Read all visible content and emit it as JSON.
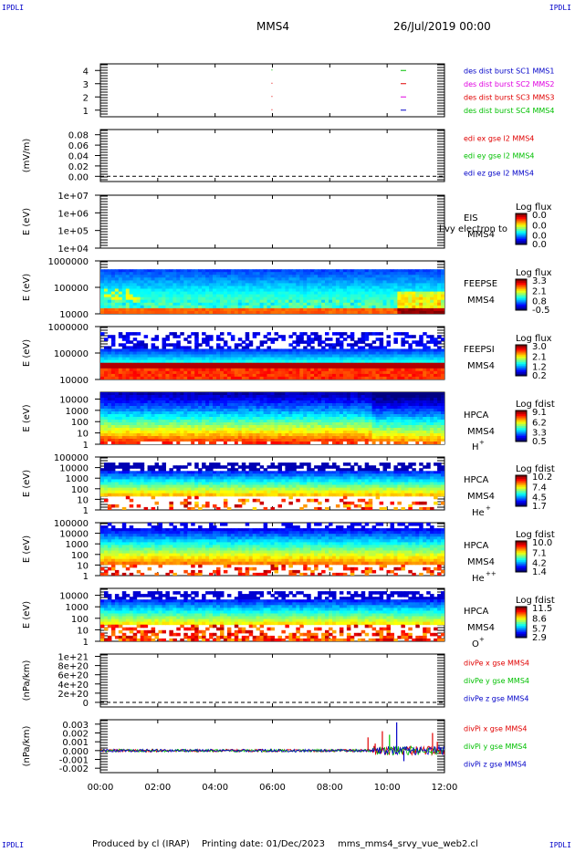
{
  "header": {
    "corner_label": "IPDLI",
    "spacecraft": "MMS4",
    "datetime": "26/Jul/2019 00:00"
  },
  "footer": {
    "produced_by": "Produced by cl (IRAP)",
    "printing_date": "Printing date: 01/Dec/2023",
    "script_name": "mms_mms4_srvy_vue_web2.cl"
  },
  "colors": {
    "red": "#e00000",
    "green": "#00c000",
    "blue": "#0000c8",
    "magenta": "#e000e0"
  },
  "chart_data": {
    "type": "heatmap",
    "x_ticks": [
      "00:00",
      "02:00",
      "04:00",
      "06:00",
      "08:00",
      "10:00",
      "12:00"
    ],
    "xlim": [
      "00:00",
      "12:00"
    ],
    "panels": [
      {
        "id": "burst",
        "type": "scatter",
        "yticks": [
          "1",
          "2",
          "3",
          "4"
        ],
        "ylim": [
          0.5,
          4.5
        ],
        "legend": [
          {
            "text": "des dist burst SC1 MMS1",
            "color": "blue"
          },
          {
            "text": "des dist burst SC2 MMS2",
            "color": "magenta"
          },
          {
            "text": "des dist burst SC3 MMS3",
            "color": "red"
          },
          {
            "text": "des dist burst SC4 MMS4",
            "color": "green"
          }
        ],
        "marks": [
          {
            "sc": 4,
            "t": "05:58",
            "color": "green"
          },
          {
            "sc": 3,
            "t": "05:58",
            "color": "red"
          },
          {
            "sc": 2,
            "t": "05:58",
            "color": "red"
          },
          {
            "sc": 1,
            "t": "05:58",
            "color": "red"
          },
          {
            "sc": 4,
            "t": "10:34",
            "color": "green"
          },
          {
            "sc": 3,
            "t": "10:34",
            "color": "red"
          },
          {
            "sc": 2,
            "t": "10:34",
            "color": "magenta"
          },
          {
            "sc": 1,
            "t": "10:34",
            "color": "blue"
          }
        ]
      },
      {
        "id": "edi",
        "type": "line",
        "ylabel": "(mV/m)",
        "yticks": [
          "0.00",
          "0.02",
          "0.04",
          "0.06",
          "0.08"
        ],
        "ylim": [
          -0.01,
          0.09
        ],
        "zero_line": true,
        "legend": [
          {
            "text": "edi ex gse l2 MMS4",
            "color": "red"
          },
          {
            "text": "edi ey gse l2 MMS4",
            "color": "green"
          },
          {
            "text": "edi ez gse l2 MMS4",
            "color": "blue"
          }
        ]
      },
      {
        "id": "eis",
        "type": "heatmap",
        "ylabel": "E (eV)",
        "log": true,
        "yticks": [
          "1e+04",
          "1e+05",
          "1e+06",
          "1e+07"
        ],
        "ylim": [
          10000,
          10000000
        ],
        "side": [
          "EIS",
          "MMS4"
        ],
        "overlay_text": "i vy electron to",
        "cbar": {
          "title": "Log flux",
          "ticks": [
            "0.0",
            "0.0",
            "0.0",
            "0.0"
          ]
        }
      },
      {
        "id": "feepse",
        "type": "heatmap",
        "ylabel": "E (eV)",
        "log": true,
        "yticks": [
          "10000",
          "100000",
          "1000000"
        ],
        "ylim": [
          10000,
          1000000
        ],
        "side": [
          "FEEPSE",
          "MMS4"
        ],
        "cbar": {
          "title": "Log flux",
          "ticks": [
            "3.3",
            "2.1",
            "0.8",
            "-0.5"
          ]
        }
      },
      {
        "id": "feepsi",
        "type": "heatmap",
        "ylabel": "E (eV)",
        "log": true,
        "yticks": [
          "10000",
          "100000",
          "1000000"
        ],
        "ylim": [
          10000,
          1000000
        ],
        "side": [
          "FEEPSI",
          "MMS4"
        ],
        "cbar": {
          "title": "Log flux",
          "ticks": [
            "3.0",
            "2.1",
            "1.2",
            "0.2"
          ]
        }
      },
      {
        "id": "hpca_h",
        "type": "heatmap",
        "ylabel": "E (eV)",
        "log": true,
        "yticks": [
          "1",
          "10",
          "100",
          "1000",
          "10000"
        ],
        "ylim": [
          1,
          40000
        ],
        "side": [
          "HPCA",
          "MMS4"
        ],
        "species": "H",
        "charge": "+",
        "cbar": {
          "title": "Log fdist",
          "ticks": [
            "9.1",
            "6.2",
            "3.3",
            "0.5"
          ]
        }
      },
      {
        "id": "hpca_he1",
        "type": "heatmap",
        "ylabel": "E (eV)",
        "log": true,
        "yticks": [
          "1",
          "10",
          "100",
          "1000",
          "10000",
          "100000"
        ],
        "ylim": [
          1,
          100000
        ],
        "side": [
          "HPCA",
          "MMS4"
        ],
        "species": "He",
        "charge": "+",
        "cbar": {
          "title": "Log fdist",
          "ticks": [
            "10.2",
            "7.4",
            "4.5",
            "1.7"
          ]
        }
      },
      {
        "id": "hpca_he2",
        "type": "heatmap",
        "ylabel": "E (eV)",
        "log": true,
        "yticks": [
          "1",
          "10",
          "100",
          "1000",
          "10000",
          "100000"
        ],
        "ylim": [
          1,
          100000
        ],
        "side": [
          "HPCA",
          "MMS4"
        ],
        "species": "He",
        "charge": "++",
        "cbar": {
          "title": "Log fdist",
          "ticks": [
            "10.0",
            "7.1",
            "4.2",
            "1.4"
          ]
        }
      },
      {
        "id": "hpca_o",
        "type": "heatmap",
        "ylabel": "E (eV)",
        "log": true,
        "yticks": [
          "1",
          "10",
          "100",
          "1000",
          "10000"
        ],
        "ylim": [
          1,
          40000
        ],
        "side": [
          "HPCA",
          "MMS4"
        ],
        "species": "O",
        "charge": "+",
        "cbar": {
          "title": "Log fdist",
          "ticks": [
            "11.5",
            "8.6",
            "5.7",
            "2.9"
          ]
        }
      },
      {
        "id": "divpe",
        "type": "line",
        "ylabel": "(nPa/km)",
        "yticks": [
          "0",
          "2e+20",
          "4e+20",
          "6e+20",
          "8e+20",
          "1e+21"
        ],
        "ylim": [
          -1e+20,
          1.05e+21
        ],
        "zero_line": true,
        "legend": [
          {
            "text": "divPe x gse MMS4",
            "color": "red"
          },
          {
            "text": "divPe y gse MMS4",
            "color": "green"
          },
          {
            "text": "divPe z gse MMS4",
            "color": "blue"
          }
        ]
      },
      {
        "id": "divpi",
        "type": "line",
        "ylabel": "(nPa/km)",
        "yticks": [
          "-0.002",
          "-0.001",
          "0.000",
          "0.001",
          "0.002",
          "0.003"
        ],
        "ylim": [
          -0.0025,
          0.0035
        ],
        "legend": [
          {
            "text": "divPi x gse MMS4",
            "color": "red"
          },
          {
            "text": "divPi y gse MMS4",
            "color": "green"
          },
          {
            "text": "divPi z gse MMS4",
            "color": "blue"
          }
        ],
        "spikes": [
          {
            "t": "09:20",
            "value": 0.0015,
            "color": "red"
          },
          {
            "t": "09:35",
            "value": 0.0008,
            "color": "red"
          },
          {
            "t": "09:50",
            "value": 0.0022,
            "color": "red"
          },
          {
            "t": "10:05",
            "value": 0.0018,
            "color": "green"
          },
          {
            "t": "10:20",
            "value": 0.0032,
            "color": "blue"
          },
          {
            "t": "10:35",
            "value": -0.0012,
            "color": "blue"
          },
          {
            "t": "11:35",
            "value": 0.002,
            "color": "red"
          },
          {
            "t": "11:45",
            "value": 0.001,
            "color": "red"
          }
        ]
      }
    ]
  }
}
